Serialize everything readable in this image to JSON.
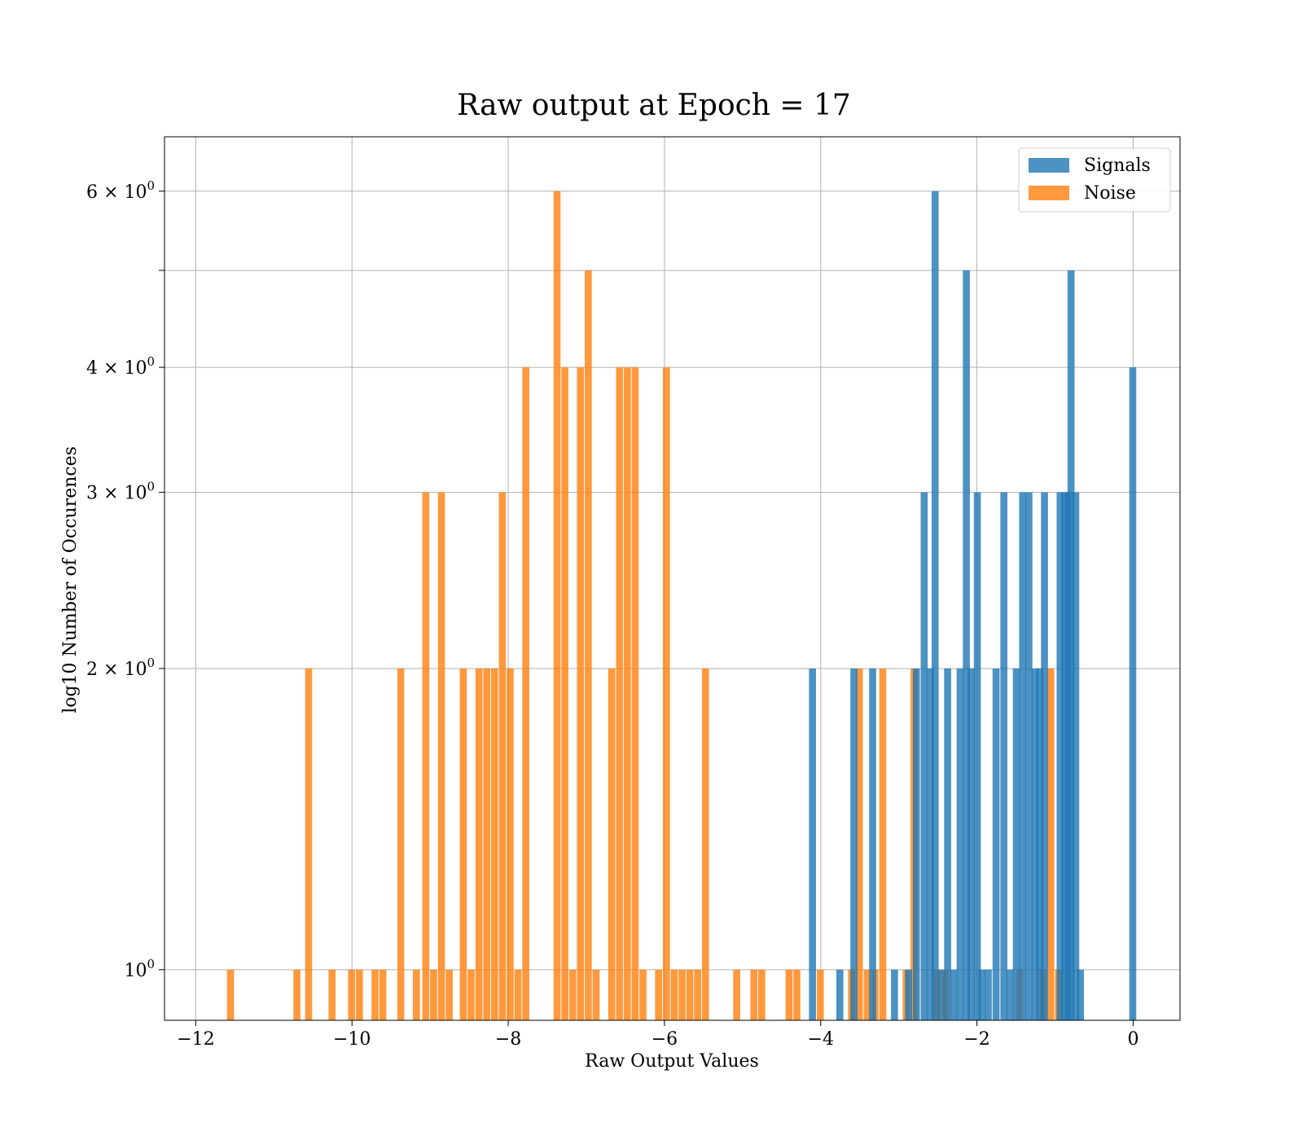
{
  "chart_data": {
    "type": "bar",
    "title": "Raw output at Epoch = 17",
    "xlabel": "Raw Output Values",
    "ylabel": "log10 Number of Occurences",
    "yscale": "log",
    "xlim": [
      -12.4,
      0.6
    ],
    "ylim": [
      0.89,
      6.8
    ],
    "bin_width": 0.09,
    "grid": true,
    "legend_position": "top-right",
    "x_ticks": [
      {
        "value": -12,
        "label": "−12"
      },
      {
        "value": -10,
        "label": "−10"
      },
      {
        "value": -8,
        "label": "−8"
      },
      {
        "value": -6,
        "label": "−6"
      },
      {
        "value": -4,
        "label": "−4"
      },
      {
        "value": -2,
        "label": "−2"
      },
      {
        "value": 0,
        "label": "0"
      }
    ],
    "y_ticks": [
      {
        "value": 1,
        "base": "10",
        "exp": "0"
      },
      {
        "value": 2,
        "base": "2 × 10",
        "exp": "0"
      },
      {
        "value": 3,
        "base": "3 × 10",
        "exp": "0"
      },
      {
        "value": 4,
        "base": "4 × 10",
        "exp": "0"
      },
      {
        "value": 5,
        "base": "",
        "exp": ""
      },
      {
        "value": 6,
        "base": "6 × 10",
        "exp": "0"
      }
    ],
    "series": [
      {
        "name": "Noise",
        "color": "#ff7f0e",
        "opacity": 0.8,
        "x": [
          -11.6,
          -10.75,
          -10.6,
          -10.3,
          -10.05,
          -9.95,
          -9.75,
          -9.65,
          -9.42,
          -9.22,
          -9.1,
          -9.0,
          -8.9,
          -8.8,
          -8.62,
          -8.52,
          -8.42,
          -8.32,
          -8.22,
          -8.12,
          -8.02,
          -7.92,
          -7.82,
          -7.42,
          -7.32,
          -7.22,
          -7.12,
          -7.02,
          -6.92,
          -6.72,
          -6.62,
          -6.52,
          -6.42,
          -6.32,
          -6.12,
          -6.02,
          -5.92,
          -5.82,
          -5.72,
          -5.62,
          -5.52,
          -5.12,
          -4.9,
          -4.8,
          -4.45,
          -4.35,
          -4.05,
          -3.65,
          -3.55,
          -3.45,
          -3.35,
          -3.25,
          -2.95,
          -2.85,
          -2.55,
          -2.45,
          -1.5,
          -1.2,
          -1.1,
          -1.0
        ],
        "counts": [
          1,
          1,
          2,
          1,
          1,
          1,
          1,
          1,
          2,
          1,
          3,
          1,
          3,
          1,
          2,
          1,
          2,
          2,
          2,
          3,
          2,
          1,
          4,
          6,
          4,
          1,
          4,
          5,
          1,
          2,
          4,
          4,
          4,
          1,
          1,
          4,
          1,
          1,
          1,
          1,
          2,
          1,
          1,
          1,
          1,
          1,
          1,
          1,
          2,
          1,
          1,
          2,
          1,
          2,
          1,
          1,
          1,
          1,
          2,
          1
        ]
      },
      {
        "name": "Signals",
        "color": "#1f77b4",
        "opacity": 0.8,
        "x": [
          -4.15,
          -3.8,
          -3.62,
          -3.38,
          -3.1,
          -2.92,
          -2.82,
          -2.72,
          -2.64,
          -2.58,
          -2.5,
          -2.42,
          -2.34,
          -2.26,
          -2.18,
          -2.12,
          -2.04,
          -1.98,
          -1.9,
          -1.8,
          -1.7,
          -1.62,
          -1.54,
          -1.46,
          -1.38,
          -1.3,
          -1.24,
          -1.18,
          -0.98,
          -0.92,
          -0.88,
          -0.84,
          -0.78,
          -0.72,
          -0.05
        ],
        "counts": [
          2,
          1,
          2,
          2,
          1,
          1,
          2,
          3,
          2,
          6,
          1,
          2,
          1,
          2,
          5,
          2,
          3,
          1,
          1,
          2,
          3,
          1,
          2,
          3,
          3,
          2,
          2,
          3,
          3,
          3,
          3,
          5,
          3,
          1,
          4
        ]
      }
    ],
    "legend": [
      {
        "name": "Signals",
        "color": "#1f77b4"
      },
      {
        "name": "Noise",
        "color": "#ff7f0e"
      }
    ]
  }
}
